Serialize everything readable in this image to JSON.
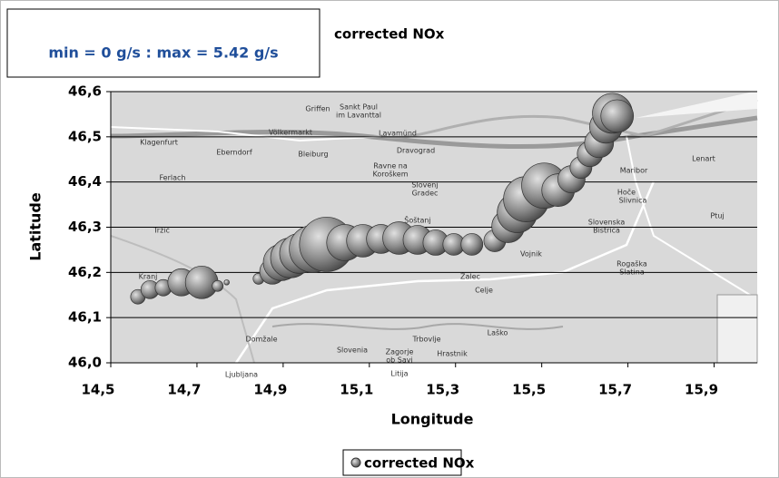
{
  "chart_data": {
    "type": "bubble",
    "title": "corrected NOx",
    "annotation": "min = 0 g/s : max = 5.42 g/s",
    "x_label": "Longitude",
    "y_label": "Latitude",
    "xlim": [
      14.5,
      16.0
    ],
    "ylim": [
      46.0,
      46.6
    ],
    "xticks": [
      {
        "value": 14.5,
        "label": "14,5"
      },
      {
        "value": 14.7,
        "label": "14,7"
      },
      {
        "value": 14.9,
        "label": "14,9"
      },
      {
        "value": 15.1,
        "label": "15,1"
      },
      {
        "value": 15.3,
        "label": "15,3"
      },
      {
        "value": 15.5,
        "label": "15,5"
      },
      {
        "value": 15.7,
        "label": "15,7"
      },
      {
        "value": 15.9,
        "label": "15,9"
      }
    ],
    "yticks": [
      {
        "value": 46.0,
        "label": "46,0"
      },
      {
        "value": 46.1,
        "label": "46,1"
      },
      {
        "value": 46.2,
        "label": "46,2"
      },
      {
        "value": 46.3,
        "label": "46,3"
      },
      {
        "value": 46.4,
        "label": "46,4"
      },
      {
        "value": 46.5,
        "label": "46,5"
      },
      {
        "value": 46.6,
        "label": "46,6"
      }
    ],
    "grid": true,
    "legend": "bottom",
    "series": [
      {
        "name": "corrected NOx",
        "color": "#808080",
        "x": [
          14.563,
          14.591,
          14.622,
          14.664,
          14.711,
          14.748,
          14.769,
          14.843,
          14.875,
          14.896,
          14.917,
          14.938,
          14.969,
          15.001,
          15.043,
          15.085,
          15.127,
          15.169,
          15.212,
          15.254,
          15.296,
          15.338,
          15.391,
          15.422,
          15.443,
          15.464,
          15.506,
          15.538,
          15.569,
          15.591,
          15.612,
          15.633,
          15.649,
          15.664,
          15.675
        ],
        "y": [
          46.146,
          46.162,
          46.166,
          46.178,
          46.178,
          46.17,
          46.178,
          46.186,
          46.202,
          46.222,
          46.232,
          46.242,
          46.252,
          46.262,
          46.266,
          46.27,
          46.274,
          46.276,
          46.272,
          46.266,
          46.262,
          46.262,
          46.27,
          46.302,
          46.332,
          46.362,
          46.392,
          46.382,
          46.406,
          46.432,
          46.462,
          46.486,
          46.522,
          46.552,
          46.546
        ],
        "sizes": [
          0.39,
          0.6,
          0.49,
          1.36,
          1.95,
          0.22,
          0.05,
          0.22,
          1.18,
          2.41,
          2.91,
          2.91,
          4.07,
          5.42,
          2.41,
          1.95,
          1.54,
          1.95,
          1.54,
          1.18,
          0.87,
          0.87,
          0.87,
          1.95,
          2.91,
          3.76,
          3.76,
          1.95,
          1.36,
          0.87,
          1.18,
          1.54,
          1.95,
          2.91,
          1.95
        ]
      }
    ],
    "map_labels": [
      "Klagenfurt",
      "Völkermarkt",
      "Griffen",
      "Sankt Paul",
      "im Lavanttal",
      "Lavamünd",
      "Dravograd",
      "Eberndorf",
      "Bleiburg",
      "Ravne na",
      "Koroškem",
      "Ferlach",
      "Slovenj",
      "Gradec",
      "Šoštanj",
      "Maribor",
      "Lenart",
      "Hoče",
      "Slivnica",
      "Slovenska",
      "Bistrica",
      "Ptuj",
      "Tržič",
      "Kranj",
      "Celje",
      "Vojnik",
      "Žalec",
      "Laško",
      "Hrastnik",
      "Trbovlje",
      "Slovenia",
      "Zagorje",
      "ob Savi",
      "Litija",
      "Ljubljana",
      "Domžale",
      "Rogaška",
      "Slatina"
    ]
  }
}
